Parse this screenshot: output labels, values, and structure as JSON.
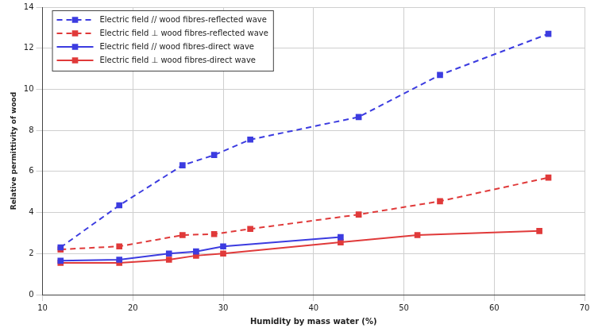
{
  "chart_data": {
    "type": "line",
    "x_label": "Humidity by mass water (%)",
    "y_label": "Relative permittivity of wood",
    "xlim": [
      10,
      70
    ],
    "xticks": [
      10,
      20,
      30,
      40,
      50,
      60,
      70
    ],
    "ylim": [
      0,
      14
    ],
    "yticks": [
      0,
      2,
      4,
      6,
      8,
      10,
      12,
      14
    ],
    "grid": true,
    "legend": "upper left",
    "series": [
      {
        "name": "Electric field // wood fibres-reflected wave",
        "color": "#3c3ce0",
        "marker": "square",
        "line_style": "dashed",
        "x": [
          12,
          18.5,
          25.5,
          29,
          33,
          45,
          54,
          66
        ],
        "values": [
          2.3,
          4.35,
          6.3,
          6.8,
          7.55,
          8.65,
          10.7,
          12.7
        ]
      },
      {
        "name": "Electric field ⊥ wood fibres-reflected wave",
        "color": "#e03a3a",
        "marker": "square",
        "line_style": "dashed",
        "x": [
          12,
          18.5,
          25.5,
          29,
          33,
          45,
          54,
          66
        ],
        "values": [
          2.2,
          2.35,
          2.9,
          2.95,
          3.2,
          3.9,
          4.55,
          5.7
        ]
      },
      {
        "name": "Electric field // wood fibres-direct wave",
        "color": "#3c3ce0",
        "marker": "square",
        "line_style": "solid",
        "x": [
          12,
          18.5,
          24,
          27,
          30,
          43
        ],
        "values": [
          1.65,
          1.7,
          2.0,
          2.1,
          2.35,
          2.8
        ]
      },
      {
        "name": "Electric field ⊥ wood fibres-direct wave",
        "color": "#e03a3a",
        "marker": "square",
        "line_style": "solid",
        "x": [
          12,
          18.5,
          24,
          27,
          30,
          43,
          51.5,
          65
        ],
        "values": [
          1.55,
          1.55,
          1.7,
          1.9,
          2.0,
          2.55,
          2.9,
          3.1
        ]
      }
    ]
  }
}
